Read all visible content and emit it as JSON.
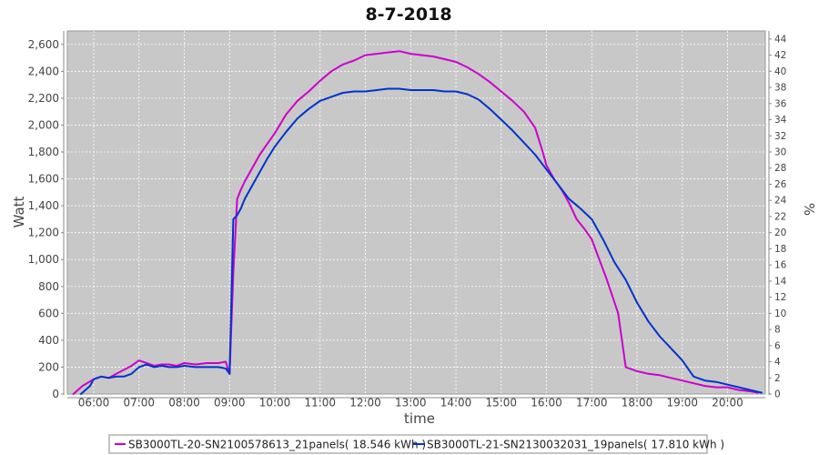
{
  "chart_data": {
    "type": "line",
    "title": "8-7-2018",
    "xlabel": "time",
    "ylabel": "Watt",
    "y2label": "%",
    "xlim": [
      "05:25",
      "20:50"
    ],
    "ylim": [
      0,
      2700
    ],
    "y2lim": [
      0,
      45
    ],
    "x_ticks": [
      "06:00",
      "07:00",
      "08:00",
      "09:00",
      "10:00",
      "11:00",
      "12:00",
      "13:00",
      "14:00",
      "15:00",
      "16:00",
      "17:00",
      "18:00",
      "19:00",
      "20:00"
    ],
    "y_ticks": [
      "0",
      "200",
      "400",
      "600",
      "800",
      "1,000",
      "1,200",
      "1,400",
      "1,600",
      "1,800",
      "2,000",
      "2,200",
      "2,400",
      "2,600"
    ],
    "y2_ticks": [
      "0",
      "2",
      "4",
      "6",
      "8",
      "10",
      "12",
      "14",
      "16",
      "18",
      "20",
      "22",
      "24",
      "26",
      "28",
      "30",
      "32",
      "34",
      "36",
      "38",
      "40",
      "42",
      "44"
    ],
    "grid": true,
    "legend_position": "bottom",
    "series": [
      {
        "name": "SB3000TL-20-SN2100578613_21panels( 18.546 kWh )",
        "color": "#cc00cc",
        "x": [
          "05:33",
          "05:45",
          "06:00",
          "06:10",
          "06:20",
          "06:30",
          "06:40",
          "06:50",
          "07:00",
          "07:10",
          "07:20",
          "07:30",
          "07:40",
          "07:50",
          "08:00",
          "08:15",
          "08:30",
          "08:45",
          "08:55",
          "09:00",
          "09:05",
          "09:10",
          "09:15",
          "09:20",
          "09:30",
          "09:40",
          "09:50",
          "10:00",
          "10:15",
          "10:30",
          "10:45",
          "11:00",
          "11:15",
          "11:30",
          "11:45",
          "12:00",
          "12:15",
          "12:30",
          "12:45",
          "13:00",
          "13:15",
          "13:30",
          "13:45",
          "14:00",
          "14:15",
          "14:30",
          "14:45",
          "15:00",
          "15:15",
          "15:30",
          "15:45",
          "15:55",
          "16:00",
          "16:10",
          "16:20",
          "16:30",
          "16:40",
          "16:50",
          "17:00",
          "17:10",
          "17:20",
          "17:35",
          "17:45",
          "18:00",
          "18:15",
          "18:30",
          "18:45",
          "19:00",
          "19:15",
          "19:30",
          "19:45",
          "20:00",
          "20:15",
          "20:30",
          "20:40"
        ],
        "values": [
          0,
          60,
          110,
          130,
          120,
          150,
          180,
          210,
          250,
          230,
          210,
          220,
          220,
          210,
          230,
          220,
          230,
          230,
          240,
          150,
          900,
          1450,
          1520,
          1580,
          1680,
          1780,
          1860,
          1940,
          2080,
          2180,
          2250,
          2330,
          2400,
          2450,
          2480,
          2520,
          2530,
          2540,
          2550,
          2530,
          2520,
          2510,
          2490,
          2470,
          2430,
          2380,
          2320,
          2250,
          2180,
          2100,
          1980,
          1800,
          1700,
          1600,
          1520,
          1420,
          1300,
          1230,
          1150,
          1000,
          850,
          600,
          200,
          170,
          150,
          140,
          120,
          100,
          80,
          60,
          50,
          50,
          30,
          20,
          10
        ]
      },
      {
        "name": "SB3000TL-21-SN2130032031_19panels( 17.810 kWh )",
        "color": "#0033cc",
        "x": [
          "05:43",
          "05:55",
          "06:00",
          "06:10",
          "06:20",
          "06:30",
          "06:40",
          "06:50",
          "07:00",
          "07:10",
          "07:20",
          "07:30",
          "07:40",
          "07:50",
          "08:00",
          "08:15",
          "08:30",
          "08:45",
          "08:55",
          "09:00",
          "09:05",
          "09:10",
          "09:15",
          "09:20",
          "09:30",
          "09:40",
          "09:50",
          "10:00",
          "10:15",
          "10:30",
          "10:45",
          "11:00",
          "11:15",
          "11:30",
          "11:45",
          "12:00",
          "12:15",
          "12:30",
          "12:45",
          "13:00",
          "13:15",
          "13:30",
          "13:45",
          "14:00",
          "14:15",
          "14:30",
          "14:45",
          "15:00",
          "15:15",
          "15:30",
          "15:45",
          "16:00",
          "16:15",
          "16:30",
          "16:45",
          "17:00",
          "17:15",
          "17:30",
          "17:45",
          "18:00",
          "18:15",
          "18:30",
          "18:45",
          "19:00",
          "19:15",
          "19:30",
          "19:45",
          "20:00",
          "20:15",
          "20:30",
          "20:45"
        ],
        "values": [
          0,
          60,
          110,
          130,
          120,
          130,
          130,
          150,
          200,
          220,
          200,
          210,
          200,
          200,
          210,
          200,
          200,
          200,
          190,
          150,
          1300,
          1330,
          1380,
          1450,
          1550,
          1650,
          1750,
          1840,
          1950,
          2050,
          2120,
          2180,
          2210,
          2240,
          2250,
          2250,
          2260,
          2270,
          2270,
          2260,
          2260,
          2260,
          2250,
          2250,
          2230,
          2190,
          2120,
          2040,
          1960,
          1870,
          1780,
          1670,
          1560,
          1450,
          1380,
          1300,
          1150,
          980,
          850,
          680,
          540,
          430,
          340,
          250,
          130,
          100,
          90,
          70,
          50,
          30,
          10
        ]
      }
    ]
  }
}
